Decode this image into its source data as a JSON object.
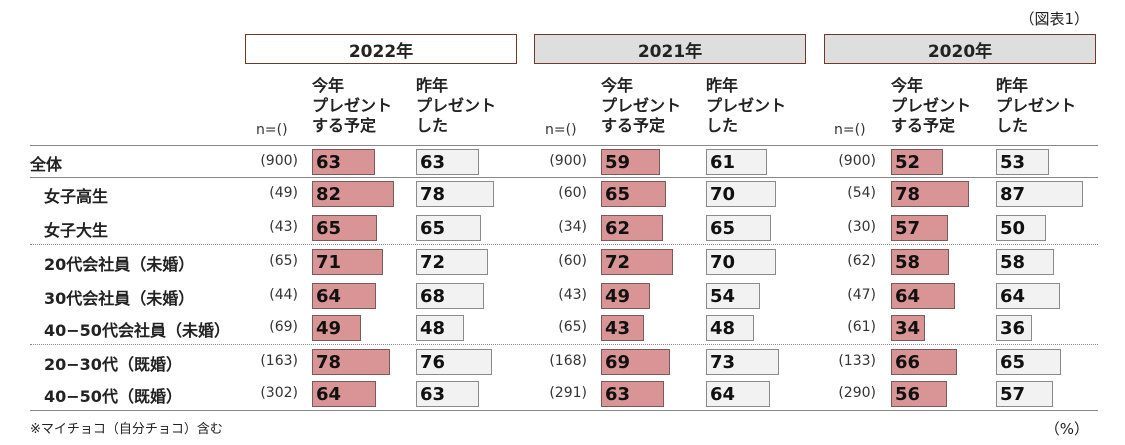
{
  "figure_label": "（図表1）",
  "footnote": "※マイチョコ（自分チョコ）含む",
  "unit": "（%）",
  "n_label": "n=()",
  "colors": {
    "current_bar": "#d99595",
    "previous_bar": "#f2f2f2",
    "year_border": "#6b3a2a"
  },
  "chart_data": {
    "type": "bar",
    "years": [
      "2022年",
      "2021年",
      "2020年"
    ],
    "series": [
      {
        "name": "今年\nプレゼント\nする予定"
      },
      {
        "name": "昨年\nプレゼント\nした"
      }
    ],
    "categories": [
      "全体",
      "女子高生",
      "女子大生",
      "20代会社員（未婚）",
      "30代会社員（未婚）",
      "40−50代会社員（未婚）",
      "20−30代（既婚）",
      "40−50代（既婚）"
    ],
    "xlim": [
      0,
      100
    ],
    "data": [
      {
        "n": [
          "(900)",
          "(49)",
          "(43)",
          "(65)",
          "(44)",
          "(69)",
          "(163)",
          "(302)"
        ],
        "current": [
          63,
          82,
          65,
          71,
          64,
          49,
          78,
          64
        ],
        "previous": [
          63,
          78,
          65,
          72,
          68,
          48,
          76,
          63
        ]
      },
      {
        "n": [
          "(900)",
          "(60)",
          "(34)",
          "(60)",
          "(43)",
          "(65)",
          "(168)",
          "(291)"
        ],
        "current": [
          59,
          65,
          62,
          72,
          49,
          43,
          69,
          63
        ],
        "previous": [
          61,
          70,
          65,
          70,
          54,
          48,
          73,
          64
        ]
      },
      {
        "n": [
          "(900)",
          "(54)",
          "(30)",
          "(62)",
          "(47)",
          "(61)",
          "(133)",
          "(290)"
        ],
        "current": [
          52,
          78,
          57,
          58,
          64,
          34,
          66,
          56
        ],
        "previous": [
          53,
          87,
          50,
          58,
          64,
          36,
          65,
          57
        ]
      }
    ]
  }
}
